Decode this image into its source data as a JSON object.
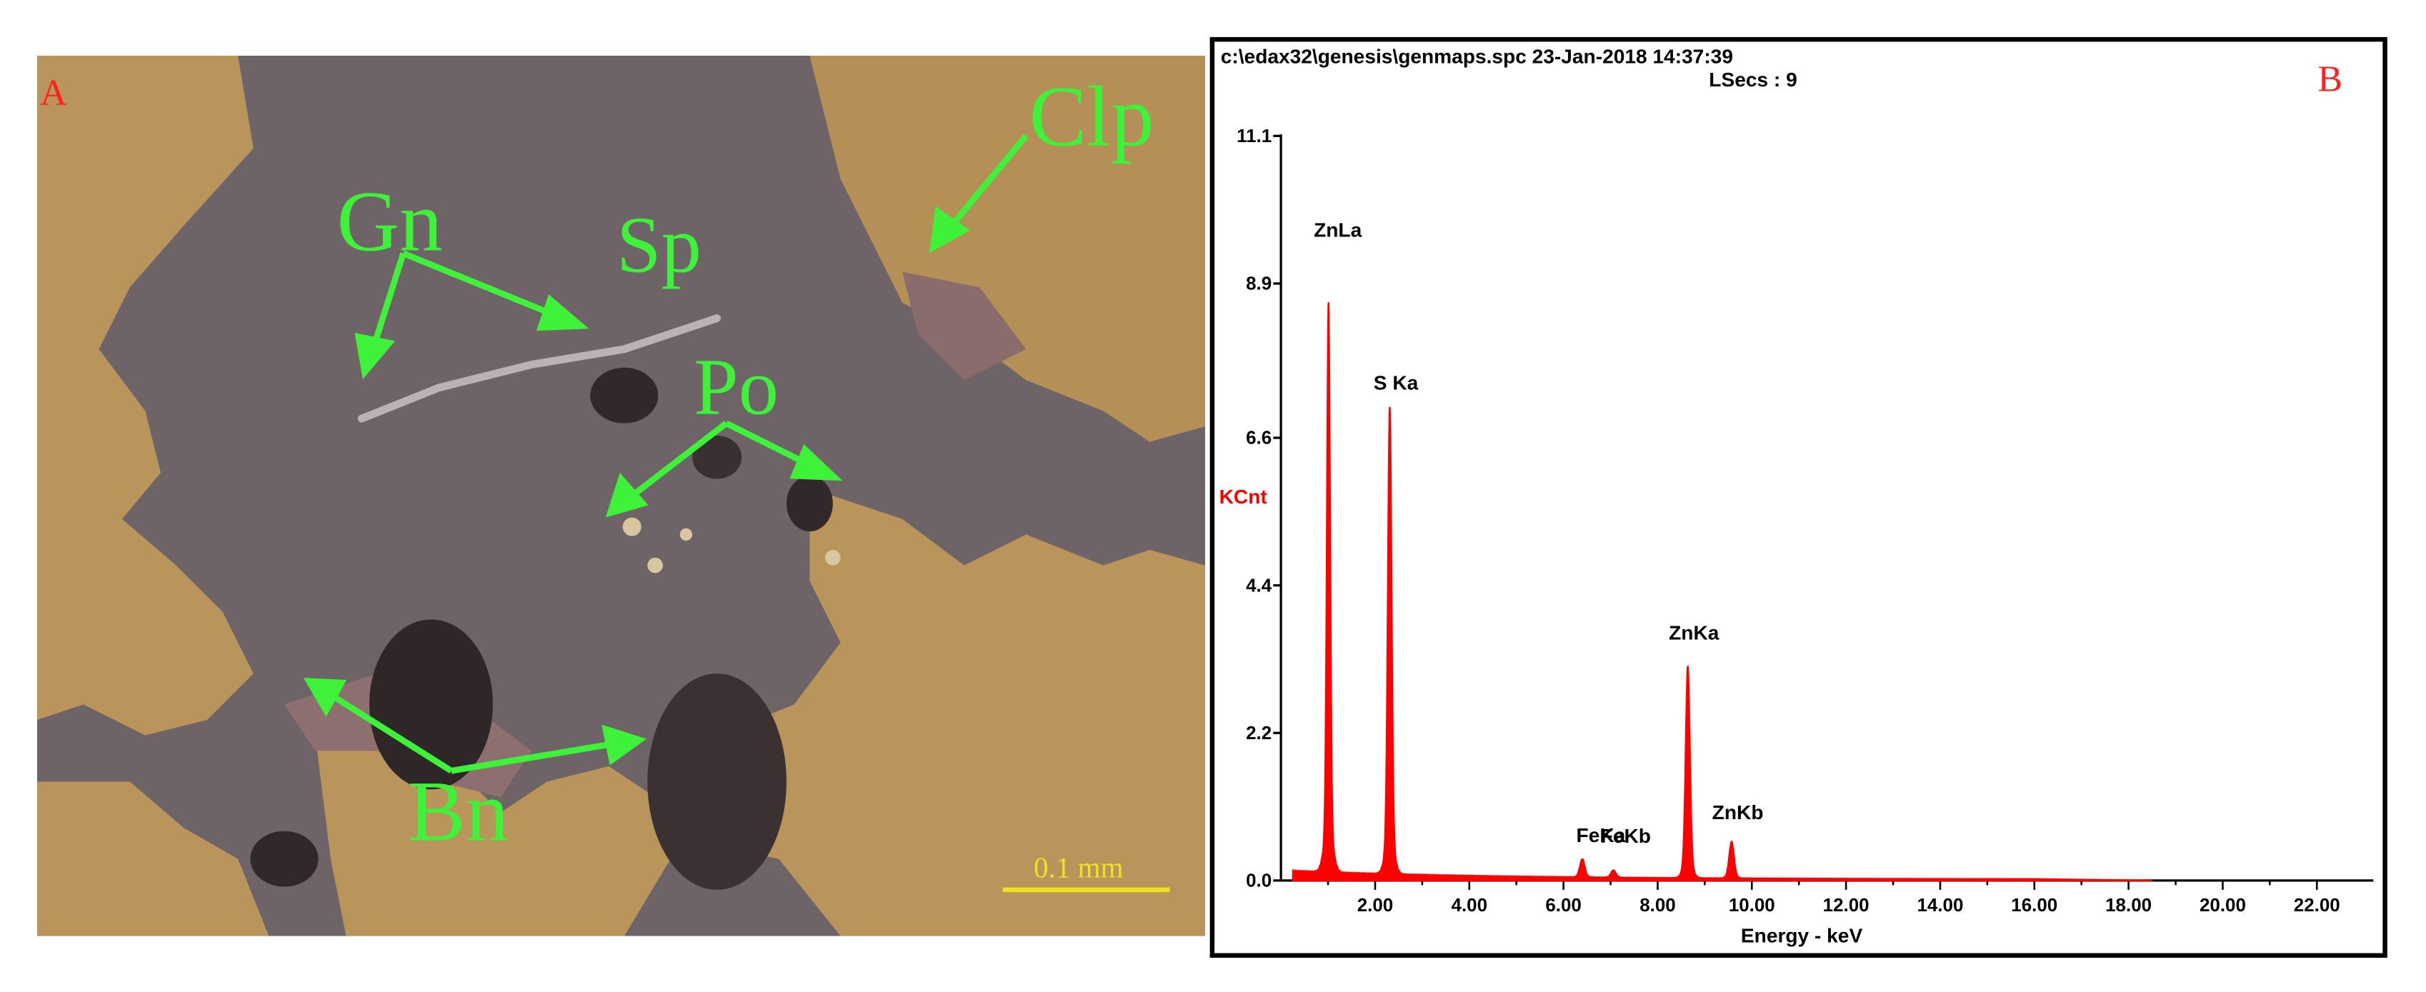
{
  "panel_a": {
    "label": "A",
    "minerals": [
      "Gn",
      "Sp",
      "Po",
      "Clp",
      "Bn"
    ],
    "scale_bar": "0.1 mm"
  },
  "panel_b": {
    "label": "B"
  },
  "chart_data": {
    "type": "line",
    "header_line1": "c:\\edax32\\genesis\\genmaps.spc  23-Jan-2018 14:37:39",
    "header_line2": "LSecs :  9",
    "xlabel": "Energy - keV",
    "ylabel": "KCnt",
    "xlim": [
      0,
      23.2
    ],
    "ylim": [
      0,
      11.1
    ],
    "x_ticks": [
      "2.00",
      "4.00",
      "6.00",
      "8.00",
      "10.00",
      "12.00",
      "14.00",
      "16.00",
      "18.00",
      "20.00",
      "22.00"
    ],
    "y_ticks": [
      "0.0",
      "2.2",
      "4.4",
      "6.6",
      "8.9",
      "11.1"
    ],
    "color": "#ff0000",
    "peaks": [
      {
        "label": "ZnLa",
        "energy": 1.01,
        "kcnt": 7.8
      },
      {
        "label": "S Ka",
        "energy": 2.31,
        "kcnt": 6.4
      },
      {
        "label": "ZnKa",
        "energy": 8.64,
        "kcnt": 2.9
      },
      {
        "label": "FeKa",
        "energy": 6.4,
        "kcnt": 0.25
      },
      {
        "label": "FeKb",
        "energy": 7.06,
        "kcnt": 0.1
      },
      {
        "label": "ZnKb",
        "energy": 9.57,
        "kcnt": 0.5
      }
    ]
  }
}
